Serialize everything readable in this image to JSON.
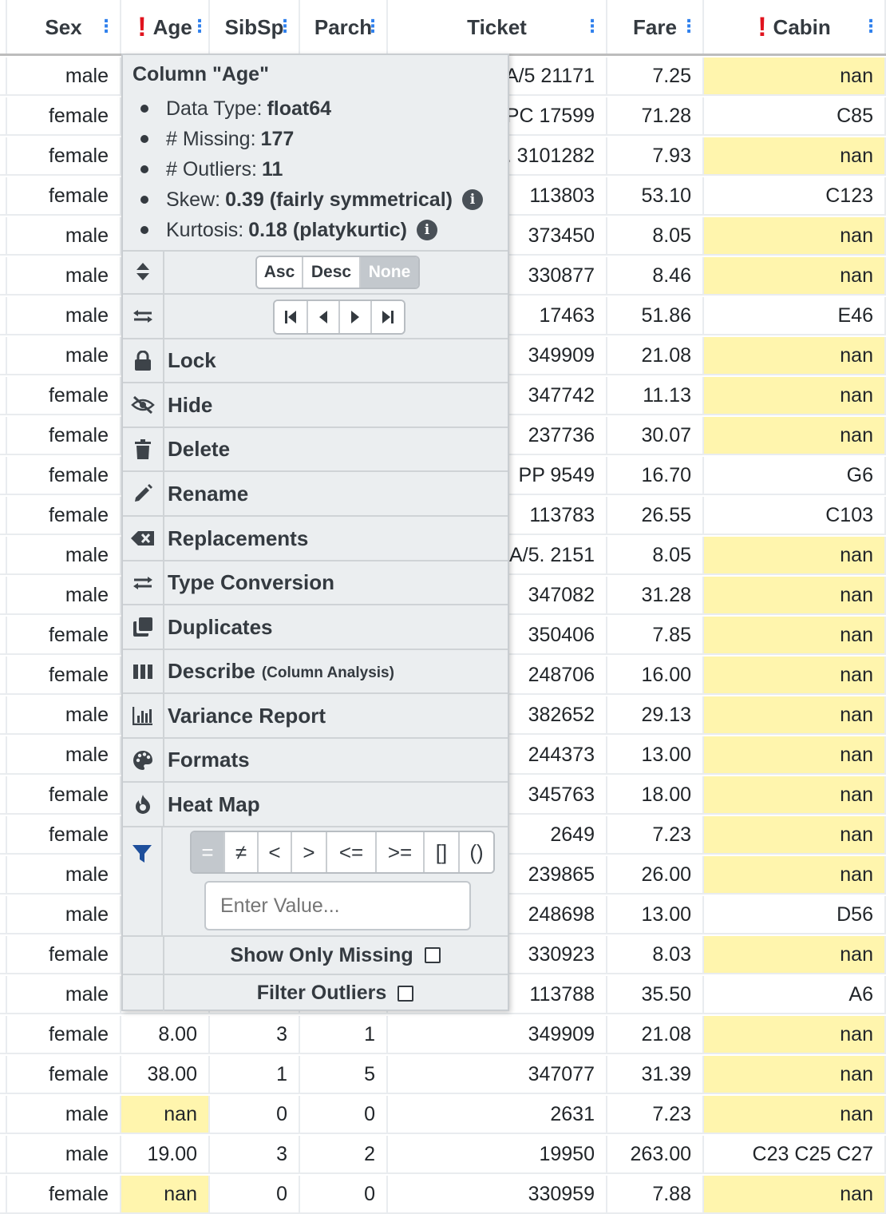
{
  "columns": [
    {
      "label": "Sex",
      "warn": false
    },
    {
      "label": "Age",
      "warn": true
    },
    {
      "label": "SibSp",
      "warn": false
    },
    {
      "label": "Parch",
      "warn": false
    },
    {
      "label": "Ticket",
      "warn": false
    },
    {
      "label": "Fare",
      "warn": false
    },
    {
      "label": "Cabin",
      "warn": true
    }
  ],
  "rows": [
    [
      "male",
      "",
      "",
      "",
      "A/5 21171",
      "7.25",
      "nan"
    ],
    [
      "female",
      "",
      "",
      "",
      "PC 17599",
      "71.28",
      "C85"
    ],
    [
      "female",
      "",
      "",
      "",
      "STON/O2. 3101282",
      "7.93",
      "nan"
    ],
    [
      "female",
      "",
      "",
      "",
      "113803",
      "53.10",
      "C123"
    ],
    [
      "male",
      "",
      "",
      "",
      "373450",
      "8.05",
      "nan"
    ],
    [
      "male",
      "",
      "",
      "",
      "330877",
      "8.46",
      "nan"
    ],
    [
      "male",
      "",
      "",
      "",
      "17463",
      "51.86",
      "E46"
    ],
    [
      "male",
      "",
      "",
      "",
      "349909",
      "21.08",
      "nan"
    ],
    [
      "female",
      "",
      "",
      "",
      "347742",
      "11.13",
      "nan"
    ],
    [
      "female",
      "",
      "",
      "",
      "237736",
      "30.07",
      "nan"
    ],
    [
      "female",
      "",
      "",
      "",
      "PP 9549",
      "16.70",
      "G6"
    ],
    [
      "female",
      "",
      "",
      "",
      "113783",
      "26.55",
      "C103"
    ],
    [
      "male",
      "",
      "",
      "",
      "A/5. 2151",
      "8.05",
      "nan"
    ],
    [
      "male",
      "",
      "",
      "",
      "347082",
      "31.28",
      "nan"
    ],
    [
      "female",
      "",
      "",
      "",
      "350406",
      "7.85",
      "nan"
    ],
    [
      "female",
      "",
      "",
      "",
      "248706",
      "16.00",
      "nan"
    ],
    [
      "male",
      "",
      "",
      "",
      "382652",
      "29.13",
      "nan"
    ],
    [
      "male",
      "",
      "",
      "",
      "244373",
      "13.00",
      "nan"
    ],
    [
      "female",
      "",
      "",
      "",
      "345763",
      "18.00",
      "nan"
    ],
    [
      "female",
      "",
      "",
      "",
      "2649",
      "7.23",
      "nan"
    ],
    [
      "male",
      "",
      "",
      "",
      "239865",
      "26.00",
      "nan"
    ],
    [
      "male",
      "",
      "",
      "",
      "248698",
      "13.00",
      "D56"
    ],
    [
      "female",
      "",
      "",
      "",
      "330923",
      "8.03",
      "nan"
    ],
    [
      "male",
      "",
      "",
      "",
      "113788",
      "35.50",
      "A6"
    ],
    [
      "female",
      "8.00",
      "3",
      "1",
      "349909",
      "21.08",
      "nan"
    ],
    [
      "female",
      "38.00",
      "1",
      "5",
      "347077",
      "31.39",
      "nan"
    ],
    [
      "male",
      "nan",
      "0",
      "0",
      "2631",
      "7.23",
      "nan"
    ],
    [
      "male",
      "19.00",
      "3",
      "2",
      "19950",
      "263.00",
      "C23 C25 C27"
    ],
    [
      "female",
      "nan",
      "0",
      "0",
      "330959",
      "7.88",
      "nan"
    ]
  ],
  "menu": {
    "title": "Column \"Age\"",
    "stats": [
      {
        "label": "Data Type:",
        "value": "float64",
        "info": false
      },
      {
        "label": "# Missing:",
        "value": "177",
        "info": false
      },
      {
        "label": "# Outliers:",
        "value": "11",
        "info": false
      },
      {
        "label": "Skew:",
        "value": "0.39 (fairly symmetrical)",
        "info": true
      },
      {
        "label": "Kurtosis:",
        "value": "0.18 (platykurtic)",
        "info": true
      }
    ],
    "sort": {
      "asc": "Asc",
      "desc": "Desc",
      "none": "None",
      "selected": "None"
    },
    "items": {
      "lock": "Lock",
      "hide": "Hide",
      "delete": "Delete",
      "rename": "Rename",
      "replacements": "Replacements",
      "type_conversion": "Type Conversion",
      "duplicates": "Duplicates",
      "describe": "Describe",
      "describe_sub": "(Column Analysis)",
      "variance": "Variance Report",
      "formats": "Formats",
      "heatmap": "Heat Map"
    },
    "filter": {
      "operators": [
        "=",
        "≠",
        "<",
        ">",
        "<=",
        ">=",
        "[]",
        "()"
      ],
      "selected": "=",
      "placeholder": "Enter Value...",
      "show_missing": "Show Only Missing",
      "filter_outliers": "Filter Outliers"
    },
    "info_glyph": "i"
  },
  "colors": {
    "missing": "#fff5ad",
    "warning": "#e0131e",
    "accent": "#2f80ed",
    "menu_bg": "#ebeef0"
  }
}
